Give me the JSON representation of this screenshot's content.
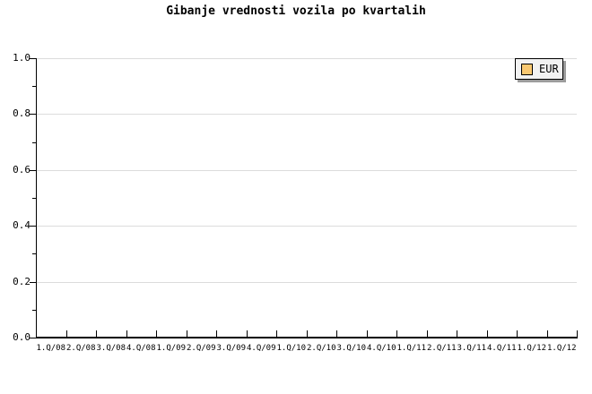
{
  "page": {
    "background_color": "#ffffff"
  },
  "chart_data": {
    "type": "line",
    "title": "Gibanje vrednosti vozila po kvartalih",
    "xlabel": "",
    "ylabel": "",
    "categories": [
      "1.Q/08",
      "2.Q/08",
      "3.Q/08",
      "4.Q/08",
      "1.Q/09",
      "2.Q/09",
      "3.Q/09",
      "4.Q/09",
      "1.Q/10",
      "2.Q/10",
      "3.Q/10",
      "4.Q/10",
      "1.Q/11",
      "2.Q/11",
      "3.Q/11",
      "4.Q/11",
      "1.Q/12",
      "1.Q/12"
    ],
    "series": [
      {
        "name": "EUR",
        "swatch_color": "#f9c871",
        "values": []
      }
    ],
    "ylim": [
      0,
      1
    ],
    "ytick_labels": [
      "0.0",
      "0.2",
      "0.4",
      "0.6",
      "0.8",
      "1.0"
    ],
    "ytick_minor_step": 0.1,
    "grid": "horizontal-major-only",
    "gridline_color": "#dcdcdc",
    "axis_color": "#000000",
    "legend": {
      "position": "top-right",
      "background_color": "#f2f2f2",
      "border_color": "#000000",
      "shadow_color": "#9c9c9c",
      "entries": [
        "EUR"
      ]
    }
  }
}
